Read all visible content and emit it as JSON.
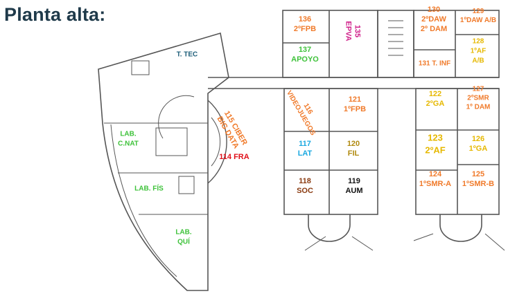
{
  "title": "Planta alta:",
  "colors": {
    "orange": "#f07a2a",
    "magenta": "#d0208a",
    "green": "#3ec23a",
    "teal": "#1f5f7a",
    "yellow": "#e6b800",
    "red": "#e0101a",
    "blue": "#1aa8e0",
    "brown": "#8a3a10",
    "olive": "#b08a10",
    "black": "#111111",
    "wall": "#555555"
  },
  "rooms": [
    {
      "id": "r136",
      "lines": [
        "136",
        "2ºFPB"
      ],
      "color": "orange"
    },
    {
      "id": "r135",
      "lines": [
        "135",
        "EPVA"
      ],
      "color": "magenta",
      "rotate": true
    },
    {
      "id": "r137",
      "lines": [
        "137",
        "APOYO"
      ],
      "color": "green"
    },
    {
      "id": "r130",
      "lines": [
        "130",
        "2ºDAW",
        "2º DAM"
      ],
      "color": "orange"
    },
    {
      "id": "r129",
      "lines": [
        "129",
        "1ºDAW A/B"
      ],
      "color": "orange"
    },
    {
      "id": "r131",
      "lines": [
        "131 T. INF"
      ],
      "color": "orange"
    },
    {
      "id": "r128",
      "lines": [
        "128",
        "1ºAF",
        "A/B"
      ],
      "color": "yellow"
    },
    {
      "id": "rttec",
      "lines": [
        "T. TEC"
      ],
      "color": "teal"
    },
    {
      "id": "r116",
      "lines": [
        "116",
        "VIDEOJUEGOS"
      ],
      "color": "orange",
      "rotate": true
    },
    {
      "id": "r121",
      "lines": [
        "121",
        "1ºFPB"
      ],
      "color": "orange"
    },
    {
      "id": "r122",
      "lines": [
        "122",
        "2ºGA"
      ],
      "color": "yellow"
    },
    {
      "id": "r127",
      "lines": [
        "127",
        "2ºSMR",
        "1º DAM"
      ],
      "color": "orange"
    },
    {
      "id": "r115",
      "lines": [
        "115 CIBER",
        "BIG DATA"
      ],
      "color": "orange",
      "rotate": true
    },
    {
      "id": "r114",
      "lines": [
        "114 FRA"
      ],
      "color": "red"
    },
    {
      "id": "rlabnat",
      "lines": [
        "LAB.",
        "C.NAT"
      ],
      "color": "green"
    },
    {
      "id": "r117",
      "lines": [
        "117",
        "LAT"
      ],
      "color": "blue"
    },
    {
      "id": "r120",
      "lines": [
        "120",
        "FIL"
      ],
      "color": "olive"
    },
    {
      "id": "r123",
      "lines": [
        "123",
        "2ºAF"
      ],
      "color": "yellow"
    },
    {
      "id": "r126",
      "lines": [
        "126",
        "1ºGA"
      ],
      "color": "yellow"
    },
    {
      "id": "rlabfis",
      "lines": [
        "LAB. FÍS"
      ],
      "color": "green"
    },
    {
      "id": "r118",
      "lines": [
        "118",
        "SOC"
      ],
      "color": "brown"
    },
    {
      "id": "r119",
      "lines": [
        "119",
        "AUM"
      ],
      "color": "black"
    },
    {
      "id": "r124",
      "lines": [
        "124",
        "1ºSMR-A"
      ],
      "color": "orange"
    },
    {
      "id": "r125",
      "lines": [
        "125",
        "1ºSMR-B"
      ],
      "color": "orange"
    },
    {
      "id": "rlabqui",
      "lines": [
        "LAB.",
        "QUÍ"
      ],
      "color": "green"
    }
  ]
}
